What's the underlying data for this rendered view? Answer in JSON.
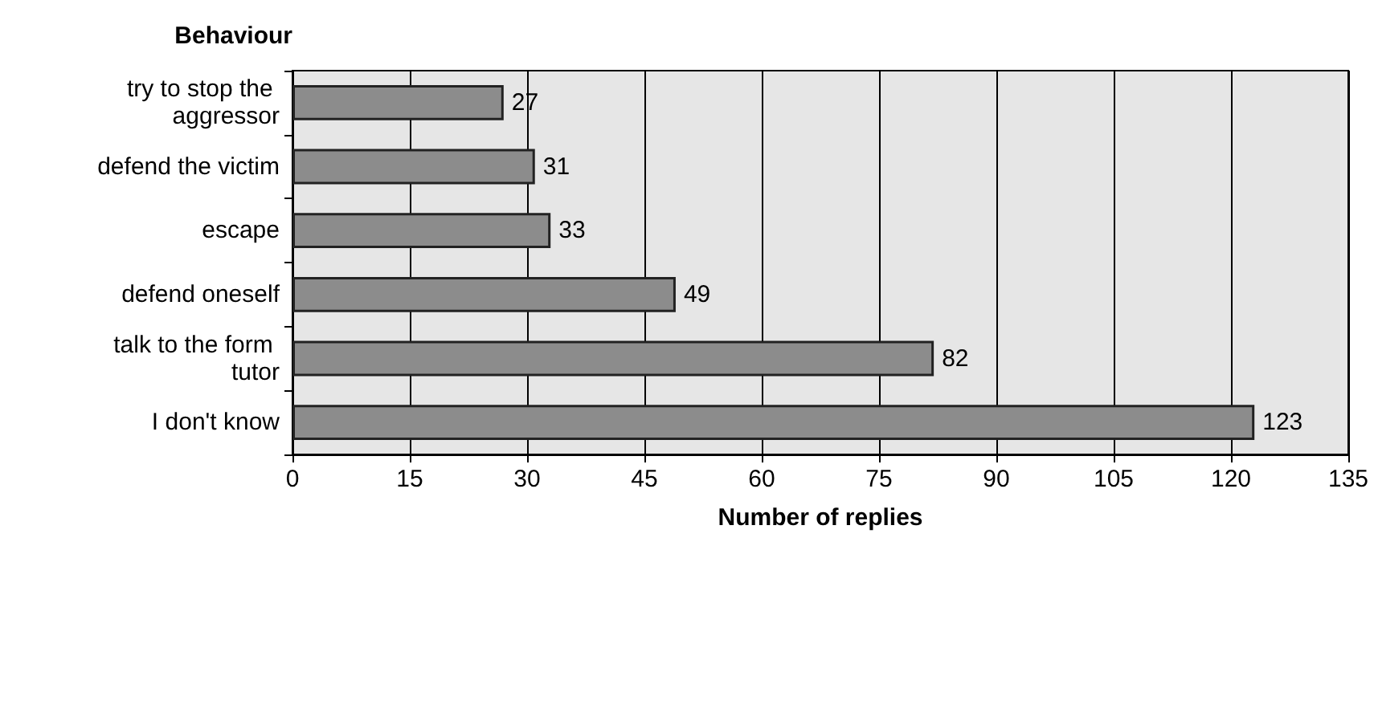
{
  "chart_data": {
    "type": "bar",
    "orientation": "horizontal",
    "ylabel": "Behaviour",
    "xlabel": "Number of replies",
    "categories": [
      "try to stop the aggressor",
      "defend the victim",
      "escape",
      "defend oneself",
      "talk to the form tutor",
      "I don't know"
    ],
    "values": [
      27,
      31,
      33,
      49,
      82,
      123
    ],
    "color": "#8c8c8c",
    "data_labels": true,
    "xlim": [
      0,
      135
    ],
    "xticks": [
      0,
      15,
      30,
      45,
      60,
      75,
      90,
      105,
      120,
      135
    ],
    "grid": "x"
  }
}
